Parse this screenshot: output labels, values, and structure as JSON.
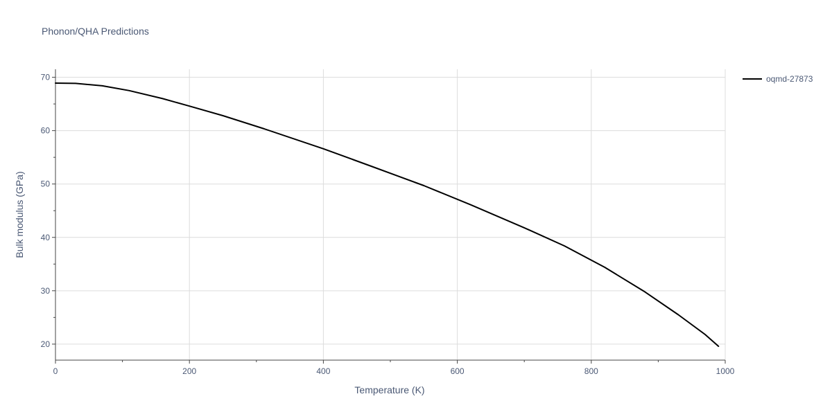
{
  "chart_data": {
    "type": "line",
    "title": "Phonon/QHA Predictions",
    "xlabel": "Temperature (K)",
    "ylabel": "Bulk modulus (GPa)",
    "xlim": [
      0,
      1000
    ],
    "ylim": [
      17,
      71.5
    ],
    "x_ticks": [
      0,
      200,
      400,
      600,
      800,
      1000
    ],
    "x_tick_labels": [
      "0",
      "200",
      "400",
      "600",
      "800",
      "1000"
    ],
    "y_ticks": [
      20,
      30,
      40,
      50,
      60,
      70
    ],
    "y_tick_labels": [
      "20",
      "30",
      "40",
      "50",
      "60",
      "70"
    ],
    "grid": true,
    "legend_position": "top-right",
    "series": [
      {
        "name": "oqmd-27873",
        "color": "#000000",
        "x": [
          0,
          30,
          70,
          110,
          160,
          200,
          250,
          310,
          400,
          470,
          550,
          620,
          700,
          760,
          820,
          880,
          930,
          970,
          990
        ],
        "y": [
          68.9,
          68.85,
          68.4,
          67.5,
          66.0,
          64.6,
          62.8,
          60.4,
          56.6,
          53.4,
          49.7,
          46.1,
          41.8,
          38.4,
          34.4,
          29.8,
          25.5,
          21.8,
          19.6
        ]
      }
    ]
  }
}
